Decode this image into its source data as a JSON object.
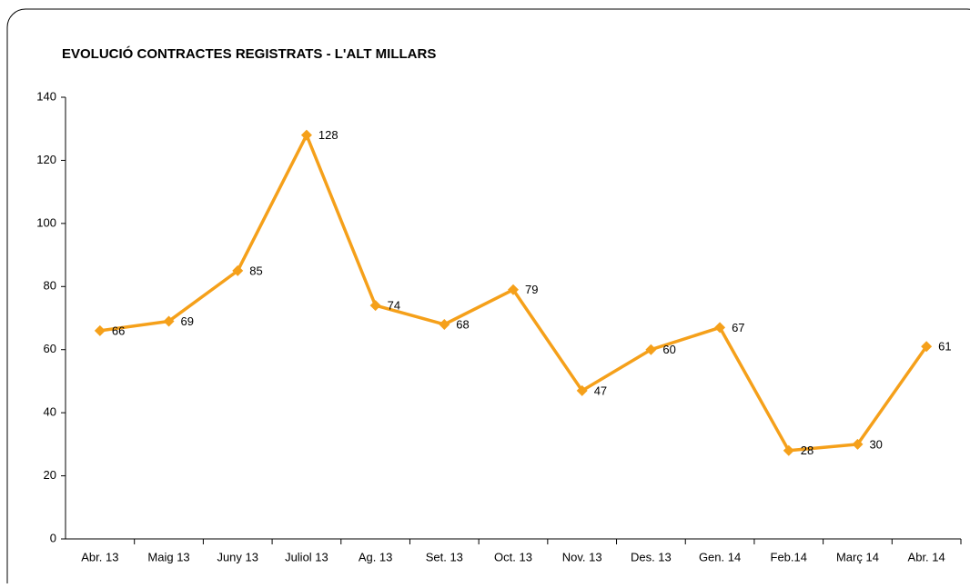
{
  "chart_data": {
    "type": "line",
    "title": "EVOLUCIÓ CONTRACTES REGISTRATS - L'ALT MILLARS",
    "categories": [
      "Abr. 13",
      "Maig 13",
      "Juny 13",
      "Juliol 13",
      "Ag. 13",
      "Set. 13",
      "Oct. 13",
      "Nov. 13",
      "Des. 13",
      "Gen. 14",
      "Feb.14",
      "Març 14",
      "Abr. 14"
    ],
    "values": [
      66,
      69,
      85,
      128,
      74,
      68,
      79,
      47,
      60,
      67,
      28,
      30,
      61
    ],
    "color": "#f5a01a",
    "ylim": [
      0,
      140
    ],
    "yticks": [
      0,
      20,
      40,
      60,
      80,
      100,
      120,
      140
    ],
    "grid": false
  }
}
